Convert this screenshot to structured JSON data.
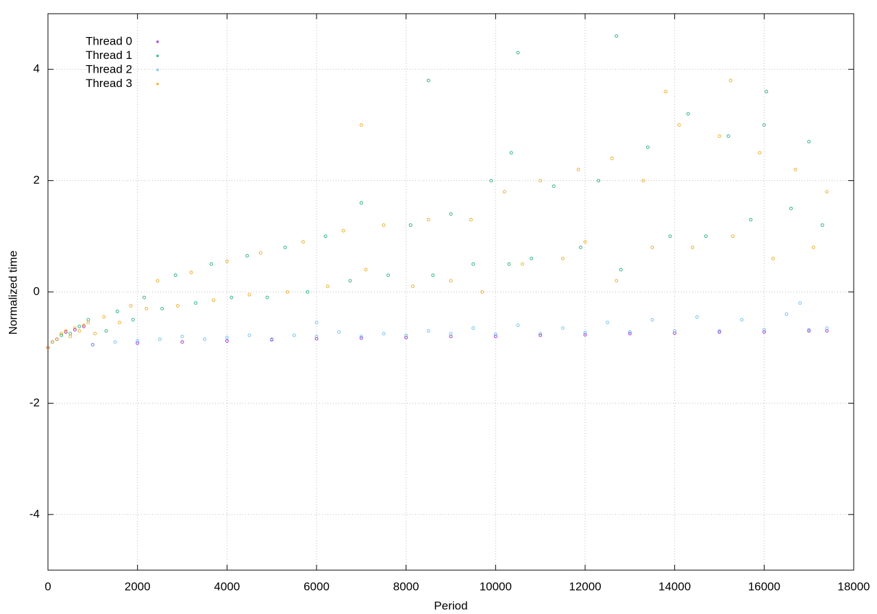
{
  "chart_data": {
    "type": "scatter",
    "xlabel": "Period",
    "ylabel": "Normalized time",
    "xlim": [
      0,
      18000
    ],
    "xticks": [
      0,
      2000,
      4000,
      6000,
      8000,
      10000,
      12000,
      14000,
      16000,
      18000
    ],
    "ylim": [
      -5,
      5
    ],
    "yticks": [
      -4,
      -2,
      0,
      2,
      4
    ],
    "grid": true,
    "legend": "top left",
    "series": [
      {
        "name": "Thread 0",
        "color": "#9400d3",
        "x": [
          0,
          200,
          400,
          600,
          800,
          1000,
          2000,
          3000,
          4000,
          5000,
          6000,
          7000,
          8000,
          9000,
          10000,
          11000,
          12000,
          13000,
          14000,
          15000,
          16000,
          17000,
          17400
        ],
        "values": [
          -1.0,
          -0.85,
          -0.72,
          -0.68,
          -0.62,
          -0.95,
          -0.92,
          -0.9,
          -0.88,
          -0.86,
          -0.84,
          -0.83,
          -0.82,
          -0.8,
          -0.8,
          -0.78,
          -0.77,
          -0.75,
          -0.74,
          -0.72,
          -0.72,
          -0.7,
          -0.7
        ]
      },
      {
        "name": "Thread 1",
        "color": "#009e73",
        "x": [
          100,
          300,
          500,
          700,
          900,
          1300,
          1550,
          1900,
          2150,
          2550,
          2850,
          3300,
          3650,
          4100,
          4450,
          4900,
          5300,
          5800,
          6200,
          6750,
          7000,
          7600,
          8100,
          8600,
          9000,
          9500,
          9900,
          10300,
          10350,
          10800,
          11300,
          11900,
          12300,
          12800,
          13400,
          13900,
          14300,
          14700,
          15200,
          15700,
          16000,
          16600,
          17000,
          17300,
          10500,
          16050,
          8500,
          12700
        ],
        "values": [
          -0.9,
          -0.78,
          -0.75,
          -0.62,
          -0.5,
          -0.7,
          -0.35,
          -0.5,
          -0.1,
          -0.3,
          0.3,
          -0.2,
          0.5,
          -0.1,
          0.65,
          -0.1,
          0.8,
          0.0,
          1.0,
          0.2,
          1.6,
          0.3,
          1.2,
          0.3,
          1.4,
          0.5,
          2.0,
          0.5,
          2.5,
          0.6,
          1.9,
          0.8,
          2.0,
          0.4,
          2.6,
          1.0,
          3.2,
          1.0,
          2.8,
          1.3,
          3.0,
          1.5,
          2.7,
          1.2,
          4.3,
          3.6,
          3.8,
          4.6
        ]
      },
      {
        "name": "Thread 2",
        "color": "#56b4e9",
        "x": [
          1000,
          1500,
          2000,
          2500,
          3000,
          3500,
          4000,
          4500,
          5000,
          5500,
          6000,
          6500,
          7000,
          7500,
          8000,
          8500,
          9000,
          9500,
          10000,
          10500,
          11000,
          11500,
          12000,
          12500,
          13000,
          13500,
          14000,
          14500,
          15000,
          15500,
          16000,
          16500,
          17000,
          17400,
          6000,
          16800
        ],
        "values": [
          -0.95,
          -0.9,
          -0.88,
          -0.85,
          -0.8,
          -0.85,
          -0.82,
          -0.78,
          -0.85,
          -0.78,
          -0.8,
          -0.72,
          -0.8,
          -0.75,
          -0.78,
          -0.7,
          -0.75,
          -0.65,
          -0.76,
          -0.6,
          -0.75,
          -0.65,
          -0.73,
          -0.55,
          -0.72,
          -0.5,
          -0.7,
          -0.45,
          -0.7,
          -0.5,
          -0.68,
          -0.4,
          -0.68,
          -0.65,
          -0.55,
          -0.2
        ]
      },
      {
        "name": "Thread 3",
        "color": "#e69f00",
        "x": [
          0,
          100,
          200,
          300,
          400,
          500,
          600,
          700,
          800,
          900,
          1050,
          1250,
          1600,
          1850,
          2200,
          2450,
          2900,
          3200,
          3700,
          4000,
          4500,
          4750,
          5350,
          5700,
          6250,
          6600,
          7100,
          7500,
          8150,
          8500,
          9000,
          9450,
          9700,
          10200,
          10600,
          11000,
          11500,
          11850,
          12000,
          12600,
          12700,
          13300,
          13500,
          14100,
          14400,
          15000,
          15300,
          15900,
          16200,
          16700,
          17100,
          17400,
          13800,
          15250,
          7000
        ],
        "values": [
          -1.0,
          -0.9,
          -0.85,
          -0.75,
          -0.7,
          -0.8,
          -0.65,
          -0.7,
          -0.6,
          -0.55,
          -0.75,
          -0.45,
          -0.55,
          -0.25,
          -0.3,
          0.2,
          -0.25,
          0.35,
          -0.15,
          0.55,
          -0.05,
          0.7,
          0.0,
          0.9,
          0.1,
          1.1,
          0.4,
          1.2,
          0.1,
          1.3,
          0.2,
          1.3,
          0.0,
          1.8,
          0.5,
          2.0,
          0.6,
          2.2,
          0.9,
          2.4,
          0.2,
          2.0,
          0.8,
          3.0,
          0.8,
          2.8,
          1.0,
          2.5,
          0.6,
          2.2,
          0.8,
          1.8,
          3.6,
          3.8,
          3.0
        ]
      }
    ]
  }
}
